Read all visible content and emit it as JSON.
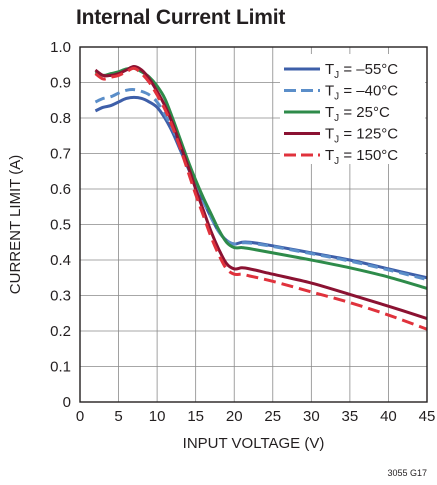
{
  "title": "Internal Current Limit",
  "figure_id": "3055 G17",
  "chart_data": {
    "type": "line",
    "title": "Internal Current Limit",
    "xlabel": "INPUT VOLTAGE (V)",
    "ylabel": "CURRENT LIMIT (A)",
    "xlim": [
      0,
      45
    ],
    "ylim": [
      0,
      1.0
    ],
    "xticks": [
      "0",
      "5",
      "10",
      "15",
      "20",
      "25",
      "30",
      "35",
      "40",
      "45"
    ],
    "yticks": [
      "0",
      "0.1",
      "0.2",
      "0.3",
      "0.4",
      "0.5",
      "0.6",
      "0.7",
      "0.8",
      "0.9",
      "1.0"
    ],
    "grid": true,
    "legend_position": "top-right",
    "series": [
      {
        "name": "T_J = –55°C",
        "legend_main": "T",
        "legend_sub": "J",
        "legend_rest": " = –55°C",
        "color": "#3e5fa9",
        "dash": "solid",
        "x": [
          2,
          3,
          4,
          5,
          6,
          7,
          8,
          9,
          10,
          11,
          12,
          13,
          14,
          15,
          16,
          17,
          18,
          19,
          20,
          21,
          22,
          25,
          30,
          35,
          40,
          45
        ],
        "y": [
          0.82,
          0.83,
          0.835,
          0.845,
          0.855,
          0.858,
          0.855,
          0.845,
          0.83,
          0.8,
          0.76,
          0.71,
          0.66,
          0.61,
          0.565,
          0.52,
          0.48,
          0.455,
          0.445,
          0.45,
          0.45,
          0.44,
          0.42,
          0.4,
          0.375,
          0.35
        ]
      },
      {
        "name": "T_J = –40°C",
        "legend_main": "T",
        "legend_sub": "J",
        "legend_rest": " = –40°C",
        "color": "#5b8ec9",
        "dash": "10,6",
        "x": [
          2,
          3,
          4,
          5,
          6,
          7,
          8,
          9,
          10,
          11,
          12,
          13,
          14,
          15,
          16,
          17,
          18,
          19,
          20,
          21,
          22,
          25,
          30,
          35,
          40,
          45
        ],
        "y": [
          0.845,
          0.855,
          0.86,
          0.87,
          0.878,
          0.88,
          0.875,
          0.865,
          0.845,
          0.81,
          0.77,
          0.72,
          0.665,
          0.615,
          0.565,
          0.52,
          0.48,
          0.455,
          0.445,
          0.448,
          0.448,
          0.438,
          0.418,
          0.397,
          0.372,
          0.345
        ]
      },
      {
        "name": "T_J = 25°C",
        "legend_main": "T",
        "legend_sub": "J",
        "legend_rest": " = 25°C",
        "color": "#2e8b4a",
        "dash": "solid",
        "x": [
          2,
          3,
          4,
          5,
          6,
          7,
          8,
          9,
          10,
          11,
          12,
          13,
          14,
          15,
          16,
          17,
          18,
          19,
          20,
          21,
          22,
          25,
          30,
          35,
          40,
          45
        ],
        "y": [
          0.93,
          0.92,
          0.925,
          0.93,
          0.938,
          0.94,
          0.93,
          0.915,
          0.89,
          0.855,
          0.8,
          0.74,
          0.68,
          0.625,
          0.575,
          0.53,
          0.485,
          0.45,
          0.435,
          0.435,
          0.432,
          0.42,
          0.4,
          0.378,
          0.352,
          0.32
        ]
      },
      {
        "name": "T_J = 125°C",
        "legend_main": "T",
        "legend_sub": "J",
        "legend_rest": " = 125°C",
        "color": "#8b1232",
        "dash": "solid",
        "x": [
          2,
          3,
          4,
          5,
          6,
          7,
          8,
          9,
          10,
          11,
          12,
          13,
          14,
          15,
          16,
          17,
          18,
          19,
          20,
          21,
          22,
          25,
          30,
          35,
          40,
          45
        ],
        "y": [
          0.935,
          0.92,
          0.92,
          0.925,
          0.935,
          0.945,
          0.935,
          0.91,
          0.875,
          0.835,
          0.785,
          0.725,
          0.665,
          0.6,
          0.54,
          0.48,
          0.43,
          0.39,
          0.375,
          0.378,
          0.375,
          0.36,
          0.335,
          0.303,
          0.27,
          0.235
        ]
      },
      {
        "name": "T_J = 150°C",
        "legend_main": "T",
        "legend_sub": "J",
        "legend_rest": " = 150°C",
        "color": "#e0323c",
        "dash": "12,6",
        "x": [
          2,
          3,
          4,
          5,
          6,
          7,
          8,
          9,
          10,
          11,
          12,
          13,
          14,
          15,
          16,
          17,
          18,
          19,
          20,
          21,
          22,
          25,
          30,
          35,
          40,
          45
        ],
        "y": [
          0.925,
          0.91,
          0.915,
          0.92,
          0.93,
          0.94,
          0.925,
          0.9,
          0.865,
          0.825,
          0.775,
          0.715,
          0.65,
          0.585,
          0.525,
          0.465,
          0.415,
          0.375,
          0.36,
          0.36,
          0.355,
          0.34,
          0.31,
          0.28,
          0.245,
          0.205
        ]
      }
    ]
  }
}
